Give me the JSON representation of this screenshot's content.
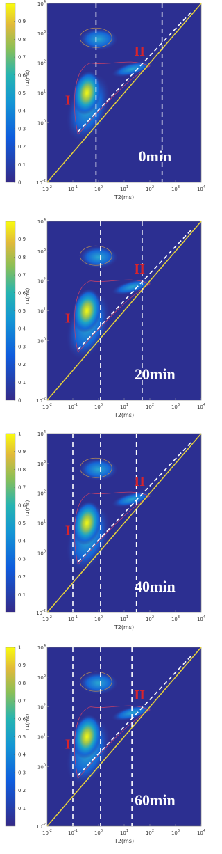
{
  "chart_data": [
    {
      "type": "contour",
      "title": "0min",
      "xlabel": "T2(ms)",
      "ylabel": "T1(ms)",
      "scale": "log",
      "xlim": [
        0.01,
        10000
      ],
      "ylim": [
        0.01,
        10000
      ],
      "xticks": [
        {
          "value": 0.01,
          "base": "10",
          "exponent": "-2"
        },
        {
          "value": 0.1,
          "base": "10",
          "exponent": "-1"
        },
        {
          "value": 1,
          "base": "10",
          "exponent": "0"
        },
        {
          "value": 10,
          "base": "10",
          "exponent": "1"
        },
        {
          "value": 100,
          "base": "10",
          "exponent": "2"
        },
        {
          "value": 1000,
          "base": "10",
          "exponent": "3"
        },
        {
          "value": 10000,
          "base": "10",
          "exponent": "4"
        }
      ],
      "yticks": [
        {
          "value": 0.01,
          "base": "10",
          "exponent": "-2"
        },
        {
          "value": 1,
          "base": "10",
          "exponent": "0"
        },
        {
          "value": 10,
          "base": "10",
          "exponent": "1"
        },
        {
          "value": 100,
          "base": "10",
          "exponent": "2"
        },
        {
          "value": 1000,
          "base": "10",
          "exponent": "3"
        },
        {
          "value": 10000,
          "base": "10",
          "exponent": "4"
        }
      ],
      "colorbar_lim": [
        0,
        1
      ],
      "colorbar_ticks": [
        0,
        0.1,
        0.2,
        0.3,
        0.4,
        0.5,
        0.6,
        0.7,
        0.8,
        0.9
      ],
      "annotations": [
        "I",
        "II"
      ],
      "dividers": [
        0.8,
        300
      ]
    },
    {
      "type": "contour",
      "title": "20min",
      "xlabel": "T2(ms)",
      "ylabel": "T1(ms)",
      "scale": "log",
      "xlim": [
        0.01,
        10000
      ],
      "ylim": [
        0.01,
        10000
      ],
      "xticks": [
        {
          "value": 0.01,
          "base": "10",
          "exponent": "-2"
        },
        {
          "value": 0.1,
          "base": "10",
          "exponent": "-1"
        },
        {
          "value": 1,
          "base": "10",
          "exponent": "0"
        },
        {
          "value": 10,
          "base": "10",
          "exponent": "1"
        },
        {
          "value": 100,
          "base": "10",
          "exponent": "2"
        },
        {
          "value": 1000,
          "base": "10",
          "exponent": "3"
        },
        {
          "value": 10000,
          "base": "10",
          "exponent": "4"
        }
      ],
      "yticks": [
        {
          "value": 0.01,
          "base": "10",
          "exponent": "-2"
        },
        {
          "value": 1,
          "base": "10",
          "exponent": "0"
        },
        {
          "value": 10,
          "base": "10",
          "exponent": "1"
        },
        {
          "value": 100,
          "base": "10",
          "exponent": "2"
        },
        {
          "value": 1000,
          "base": "10",
          "exponent": "3"
        },
        {
          "value": 10000,
          "base": "10",
          "exponent": "4"
        }
      ],
      "colorbar_lim": [
        0,
        1
      ],
      "colorbar_ticks": [
        0,
        0.1,
        0.2,
        0.3,
        0.4,
        0.5,
        0.6,
        0.7,
        0.8,
        0.9
      ],
      "annotations": [
        "I",
        "II"
      ],
      "dividers": [
        1.2,
        50
      ]
    },
    {
      "type": "contour",
      "title": "40min",
      "xlabel": "T2(ms)",
      "ylabel": "T1(ms)",
      "scale": "log",
      "xlim": [
        0.01,
        10000
      ],
      "ylim": [
        0.01,
        10000
      ],
      "xticks": [
        {
          "value": 0.01,
          "base": "10",
          "exponent": "-2"
        },
        {
          "value": 0.1,
          "base": "10",
          "exponent": "-1"
        },
        {
          "value": 1,
          "base": "10",
          "exponent": "0"
        },
        {
          "value": 10,
          "base": "10",
          "exponent": "1"
        },
        {
          "value": 100,
          "base": "10",
          "exponent": "2"
        },
        {
          "value": 1000,
          "base": "10",
          "exponent": "3"
        },
        {
          "value": 10000,
          "base": "10",
          "exponent": "4"
        }
      ],
      "yticks": [
        {
          "value": 0.01,
          "base": "10",
          "exponent": "-2"
        },
        {
          "value": 1,
          "base": "10",
          "exponent": "0"
        },
        {
          "value": 10,
          "base": "10",
          "exponent": "1"
        },
        {
          "value": 100,
          "base": "10",
          "exponent": "2"
        },
        {
          "value": 1000,
          "base": "10",
          "exponent": "3"
        },
        {
          "value": 10000,
          "base": "10",
          "exponent": "4"
        }
      ],
      "colorbar_lim": [
        0,
        1
      ],
      "colorbar_ticks": [
        0.1,
        0.2,
        0.3,
        0.4,
        0.5,
        0.6,
        0.7,
        0.8,
        0.9,
        1
      ],
      "annotations": [
        "I",
        "II"
      ],
      "dividers": [
        0.1,
        1.2,
        30
      ]
    },
    {
      "type": "contour",
      "title": "60min",
      "xlabel": "T2(ms)",
      "ylabel": "T1(ms)",
      "scale": "log",
      "xlim": [
        0.01,
        10000
      ],
      "ylim": [
        0.01,
        10000
      ],
      "xticks": [
        {
          "value": 0.01,
          "base": "10",
          "exponent": "-2"
        },
        {
          "value": 0.1,
          "base": "10",
          "exponent": "-1"
        },
        {
          "value": 1,
          "base": "10",
          "exponent": "0"
        },
        {
          "value": 10,
          "base": "10",
          "exponent": "1"
        },
        {
          "value": 100,
          "base": "10",
          "exponent": "2"
        },
        {
          "value": 1000,
          "base": "10",
          "exponent": "3"
        },
        {
          "value": 10000,
          "base": "10",
          "exponent": "4"
        }
      ],
      "yticks": [
        {
          "value": 0.01,
          "base": "10",
          "exponent": "-2"
        },
        {
          "value": 1,
          "base": "10",
          "exponent": "0"
        },
        {
          "value": 10,
          "base": "10",
          "exponent": "1"
        },
        {
          "value": 100,
          "base": "10",
          "exponent": "2"
        },
        {
          "value": 1000,
          "base": "10",
          "exponent": "3"
        },
        {
          "value": 10000,
          "base": "10",
          "exponent": "4"
        }
      ],
      "colorbar_lim": [
        0,
        1
      ],
      "colorbar_ticks": [
        0.1,
        0.2,
        0.3,
        0.4,
        0.5,
        0.6,
        0.7,
        0.8,
        0.9,
        1
      ],
      "annotations": [
        "I",
        "II"
      ],
      "dividers": [
        0.1,
        1.2,
        20
      ]
    }
  ]
}
